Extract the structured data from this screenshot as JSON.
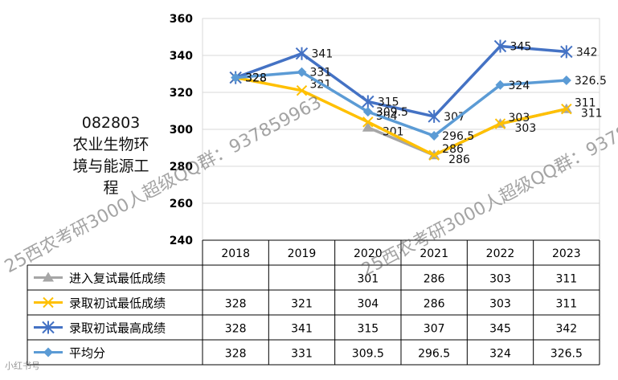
{
  "side_title": [
    "082803",
    "农业生物环",
    "境与能源工",
    "程"
  ],
  "watermark_text": "25西农考研3000人超级QQ群：937859963",
  "corner_text": "小红书号",
  "chart_data": {
    "type": "line",
    "categories": [
      "2018",
      "2019",
      "2020",
      "2021",
      "2022",
      "2023"
    ],
    "ylim": [
      240,
      360
    ],
    "yticks": [
      240,
      260,
      280,
      300,
      320,
      340,
      360
    ],
    "grid": true,
    "series": [
      {
        "name": "进入复试最低成绩",
        "color": "#a6a6a6",
        "marker": "triangle",
        "values": [
          null,
          null,
          301,
          286,
          303,
          311
        ],
        "display": [
          "",
          "",
          "301",
          "286",
          "303",
          "311"
        ]
      },
      {
        "name": "录取初试最低成绩",
        "color": "#ffc000",
        "marker": "x",
        "values": [
          328,
          321,
          304,
          286,
          303,
          311
        ],
        "display": [
          "328",
          "321",
          "304",
          "286",
          "303",
          "311"
        ]
      },
      {
        "name": "录取初试最高成绩",
        "color": "#4472c4",
        "marker": "star",
        "values": [
          328,
          341,
          315,
          307,
          345,
          342
        ],
        "display": [
          "328",
          "341",
          "315",
          "307",
          "345",
          "342"
        ]
      },
      {
        "name": "平均分",
        "color": "#5b9bd5",
        "marker": "diamond",
        "values": [
          328,
          331,
          309.5,
          296.5,
          324,
          326.5
        ],
        "display": [
          "328",
          "331",
          "309.5",
          "296.5",
          "324",
          "326.5"
        ]
      }
    ]
  }
}
